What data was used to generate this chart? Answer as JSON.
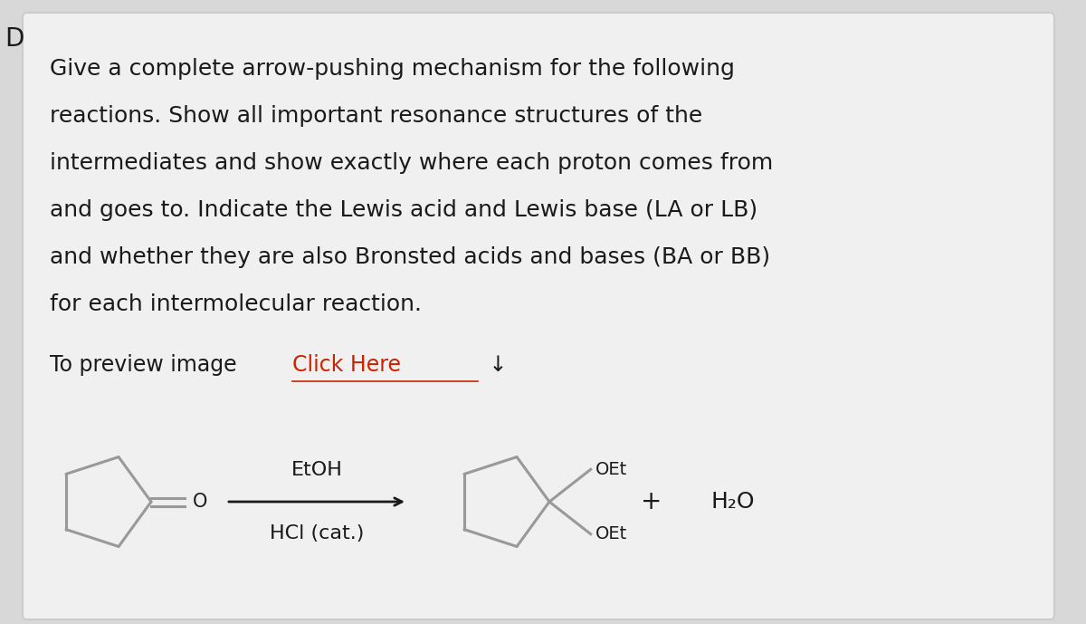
{
  "background_color": "#d8d8d8",
  "card_color": "#f0f0f0",
  "corner_label": "D",
  "main_text_lines": [
    "Give a complete arrow-pushing mechanism for the following",
    "reactions. Show all important resonance structures of the",
    "intermediates and show exactly where each proton comes from",
    "and goes to. Indicate the Lewis acid and Lewis base (LA or LB)",
    "and whether they are also Bronsted acids and bases (BA or BB)",
    "for each intermolecular reaction."
  ],
  "preview_text_plain": "To preview image ",
  "preview_link_text": "Click Here",
  "preview_icon": "↓",
  "reaction_above_arrow": "EtOH",
  "reaction_below_arrow": "HCl (cat.)",
  "plus_sign": "+",
  "h2o_text": "H₂O",
  "product_label_top": "OEt",
  "product_label_bottom": "OEt",
  "text_color": "#1a1a1a",
  "link_color": "#cc2200",
  "structure_color": "#888888",
  "arrow_color": "#1a1a1a",
  "main_text_fontsize": 18,
  "preview_fontsize": 17,
  "reaction_fontsize": 16
}
